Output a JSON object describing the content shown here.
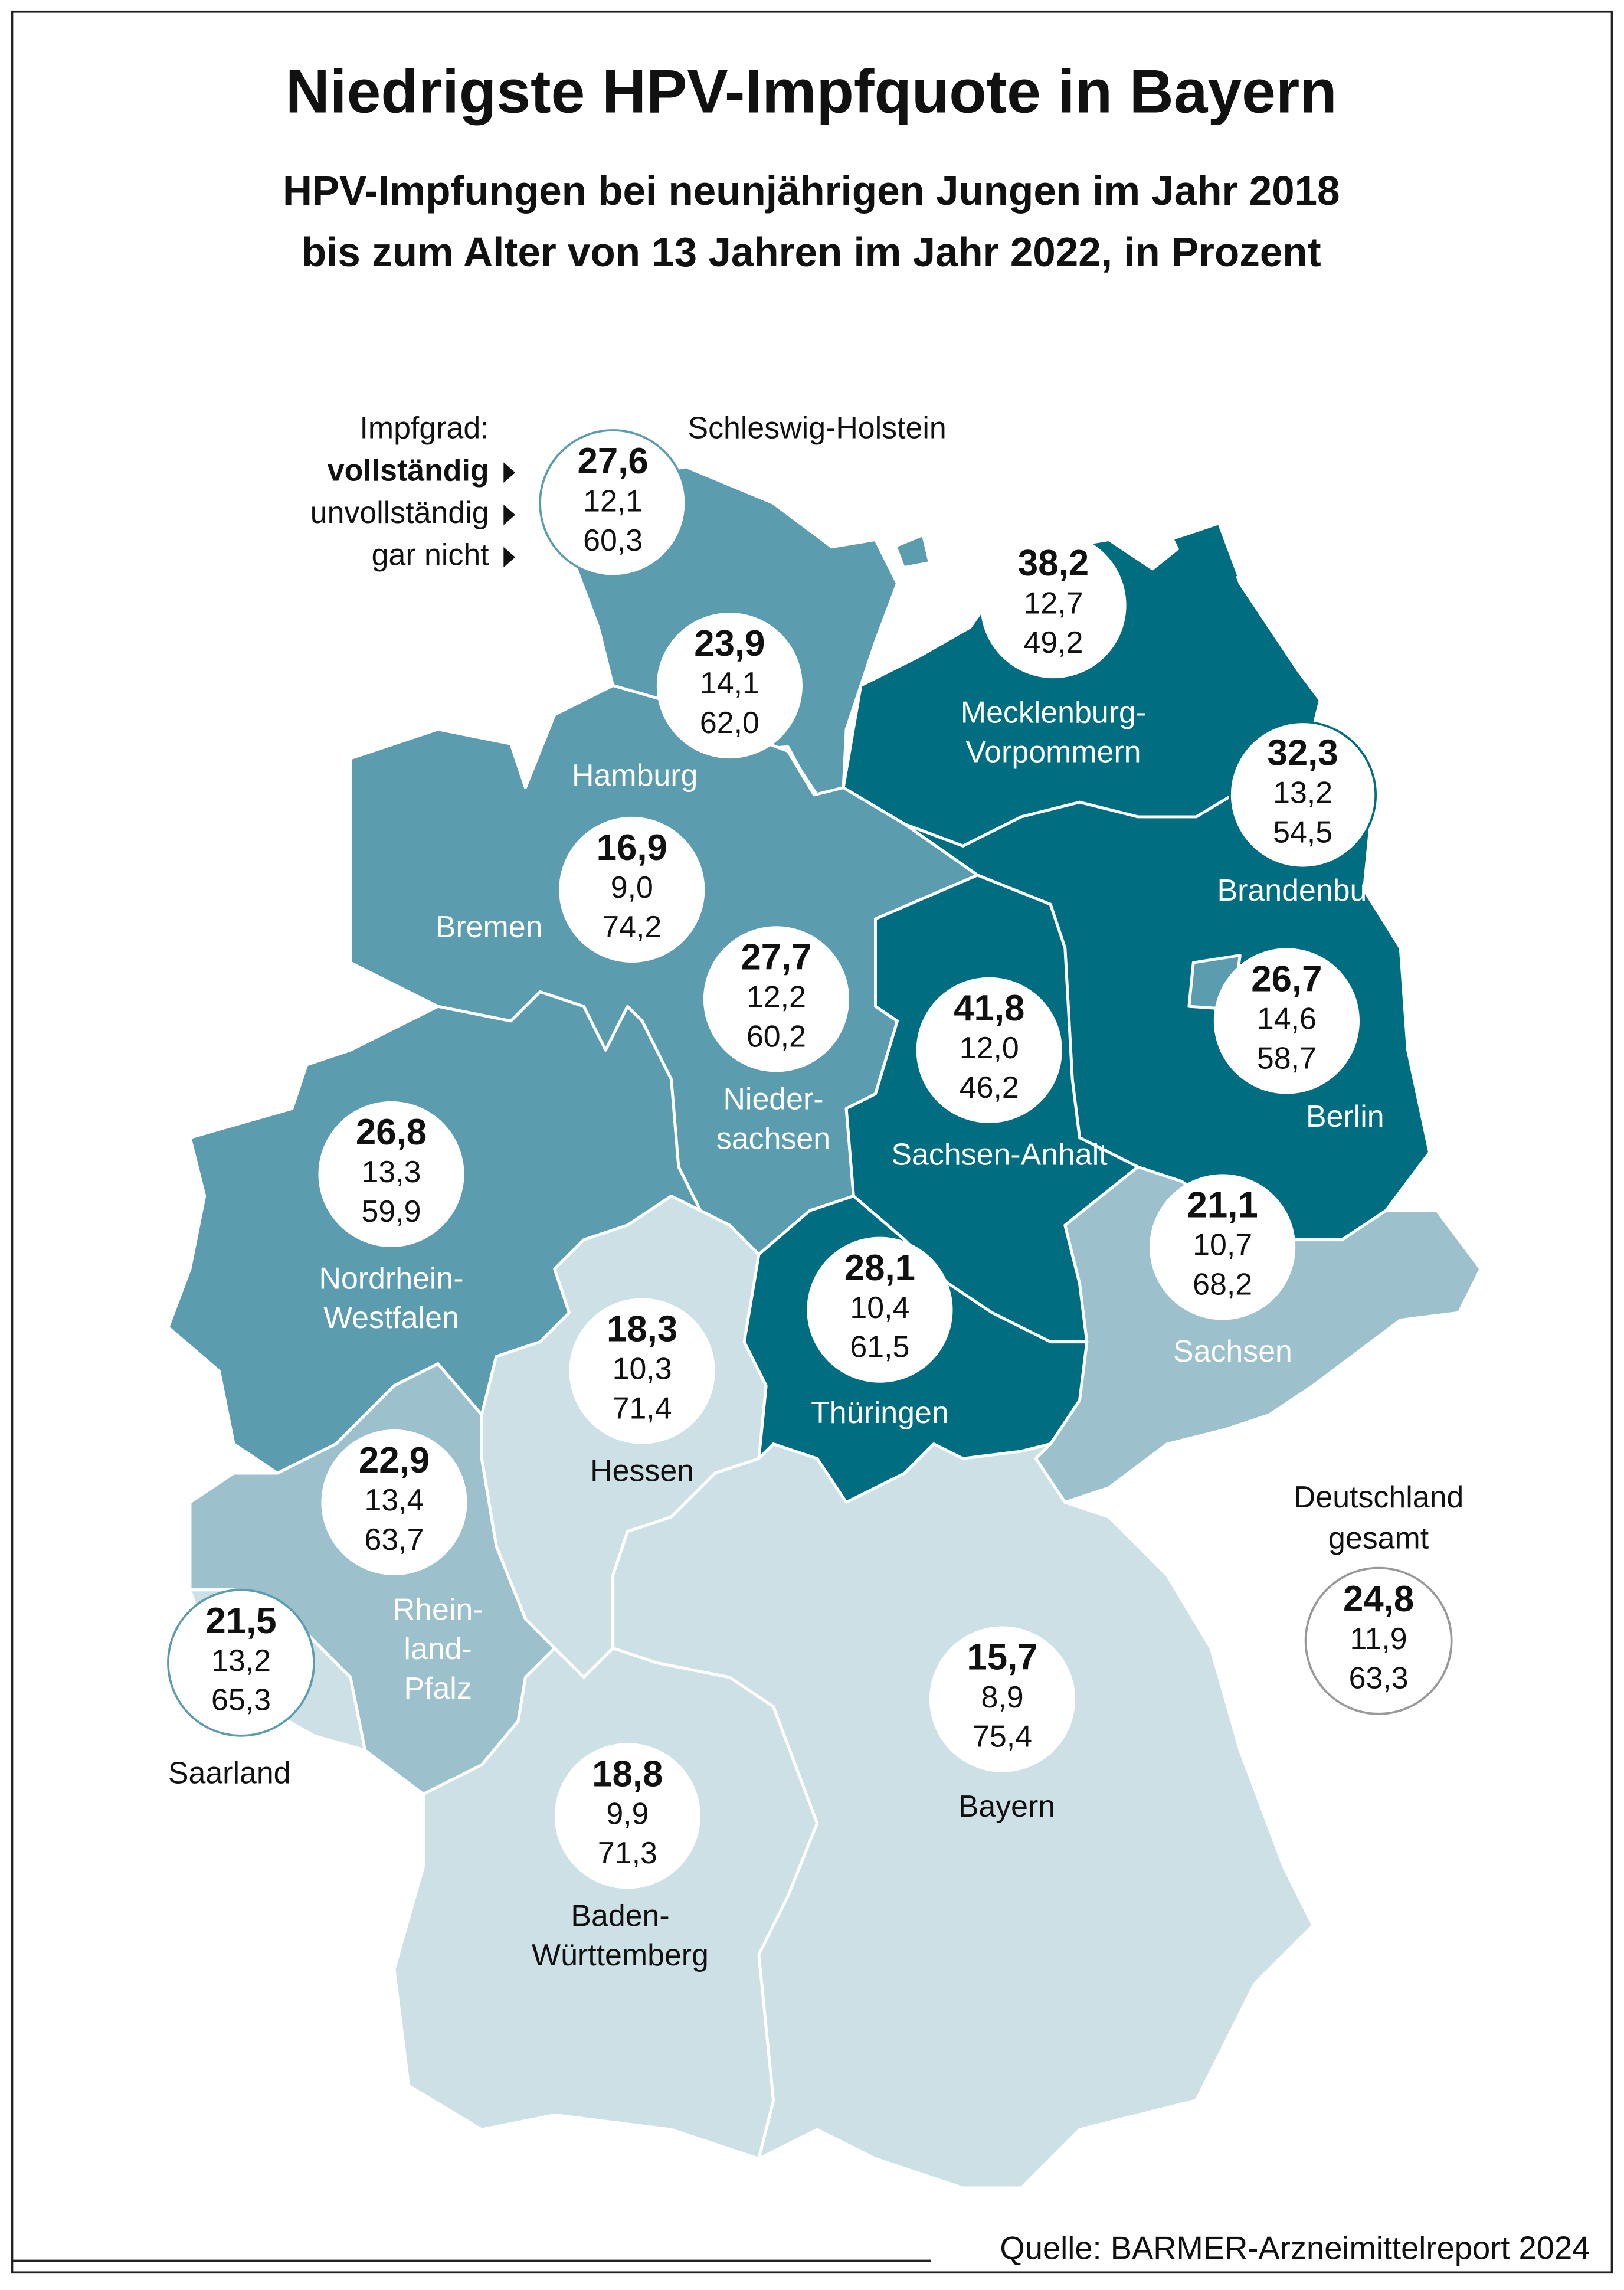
{
  "header": {
    "title": "Niedrigste HPV-Impfquote in Bayern",
    "subtitle_lines": [
      "HPV-Impfungen bei neunjährigen Jungen im Jahr 2018",
      "bis zum Alter von 13 Jahren im Jahr 2022, in Prozent"
    ]
  },
  "legend": {
    "title": "Impfgrad:",
    "items": [
      "vollständig",
      "unvollständig",
      "gar nicht"
    ]
  },
  "regions": [
    {
      "name_lines": [
        "Schleswig-Holstein"
      ],
      "color": "#5b9dae",
      "values": [
        "27,6",
        "12,1",
        "60,3"
      ]
    },
    {
      "name_lines": [
        "Hamburg"
      ],
      "color": "#cde0e6",
      "values": [
        "23,9",
        "14,1",
        "62,0"
      ]
    },
    {
      "name_lines": [
        "Mecklenburg-",
        "Vorpommern"
      ],
      "color": "#006e80",
      "values": [
        "38,2",
        "12,7",
        "49,2"
      ]
    },
    {
      "name_lines": [
        "Brandenburg"
      ],
      "color": "#006e80",
      "values": [
        "32,3",
        "13,2",
        "54,5"
      ]
    },
    {
      "name_lines": [
        "Bremen"
      ],
      "color": "#5b9dae",
      "values": [
        "16,9",
        "9,0",
        "74,2"
      ]
    },
    {
      "name_lines": [
        "Nieder-",
        "sachsen"
      ],
      "color": "#5b9dae",
      "values": [
        "27,7",
        "12,2",
        "60,2"
      ]
    },
    {
      "name_lines": [
        "Sachsen-Anhalt"
      ],
      "color": "#006e80",
      "values": [
        "41,8",
        "12,0",
        "46,2"
      ]
    },
    {
      "name_lines": [
        "Berlin"
      ],
      "color": "#5b9dae",
      "values": [
        "26,7",
        "14,6",
        "58,7"
      ]
    },
    {
      "name_lines": [
        "Nordrhein-",
        "Westfalen"
      ],
      "color": "#5b9dae",
      "values": [
        "26,8",
        "13,3",
        "59,9"
      ]
    },
    {
      "name_lines": [
        "Sachsen"
      ],
      "color": "#9cc1cc",
      "values": [
        "21,1",
        "10,7",
        "68,2"
      ]
    },
    {
      "name_lines": [
        "Thüringen"
      ],
      "color": "#006e80",
      "values": [
        "28,1",
        "10,4",
        "61,5"
      ]
    },
    {
      "name_lines": [
        "Hessen"
      ],
      "color": "#cde0e6",
      "values": [
        "18,3",
        "10,3",
        "71,4"
      ]
    },
    {
      "name_lines": [
        "Rhein-",
        "land-",
        "Pfalz"
      ],
      "color": "#9cc1cc",
      "values": [
        "22,9",
        "13,4",
        "63,7"
      ]
    },
    {
      "name_lines": [
        "Saarland"
      ],
      "color": "#cde0e6",
      "values": [
        "21,5",
        "13,2",
        "65,3"
      ]
    },
    {
      "name_lines": [
        "Bayern"
      ],
      "color": "#cde0e6",
      "values": [
        "15,7",
        "8,9",
        "75,4"
      ]
    },
    {
      "name_lines": [
        "Baden-",
        "Württemberg"
      ],
      "color": "#cde0e6",
      "values": [
        "18,8",
        "9,9",
        "71,3"
      ]
    }
  ],
  "total": {
    "name_lines": [
      "Deutschland",
      "gesamt"
    ],
    "values": [
      "24,8",
      "11,9",
      "63,3"
    ]
  },
  "source": "Quelle: BARMER-Arzneimittelreport 2024"
}
